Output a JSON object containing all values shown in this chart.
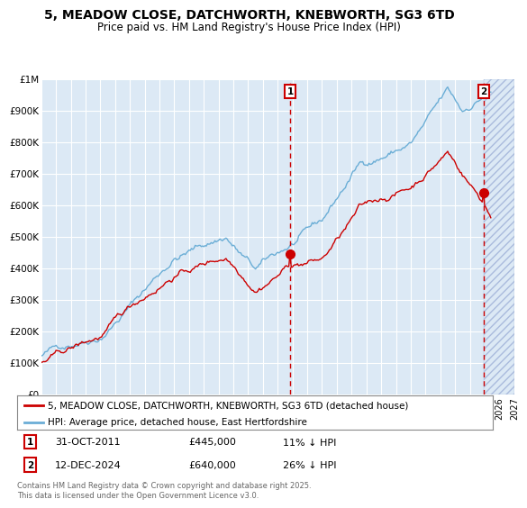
{
  "title": "5, MEADOW CLOSE, DATCHWORTH, KNEBWORTH, SG3 6TD",
  "subtitle": "Price paid vs. HM Land Registry's House Price Index (HPI)",
  "ylabel_ticks": [
    "£0",
    "£100K",
    "£200K",
    "£300K",
    "£400K",
    "£500K",
    "£600K",
    "£700K",
    "£800K",
    "£900K",
    "£1M"
  ],
  "ylim": [
    0,
    1000000
  ],
  "xlim_start": 1995.0,
  "xlim_end": 2027.0,
  "sale1_x": 2011.833,
  "sale1_y": 445000,
  "sale2_x": 2024.95,
  "sale2_y": 640000,
  "hpi_color": "#6baed6",
  "price_color": "#cc0000",
  "plot_bg_color": "#dce9f5",
  "grid_color": "#ffffff",
  "legend1_label": "5, MEADOW CLOSE, DATCHWORTH, KNEBWORTH, SG3 6TD (detached house)",
  "legend2_label": "HPI: Average price, detached house, East Hertfordshire",
  "sale1_date": "31-OCT-2011",
  "sale1_price": "£445,000",
  "sale1_note": "11% ↓ HPI",
  "sale2_date": "12-DEC-2024",
  "sale2_price": "£640,000",
  "sale2_note": "26% ↓ HPI",
  "footer": "Contains HM Land Registry data © Crown copyright and database right 2025.\nThis data is licensed under the Open Government Licence v3.0."
}
